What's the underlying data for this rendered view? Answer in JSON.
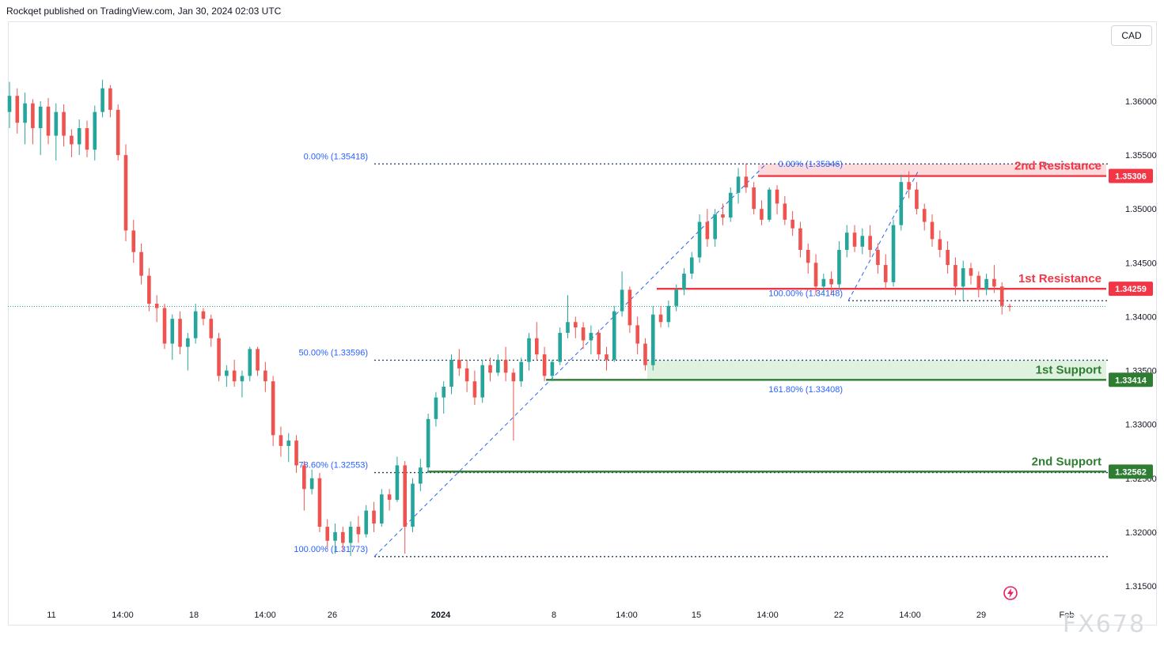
{
  "header": {
    "text": "Rockqet published on TradingView.com, Jan 30, 2024 02:03 UTC"
  },
  "currency_label": "CAD",
  "watermark": "FX678",
  "colors": {
    "bull": "#26a69a",
    "bear": "#ef5350",
    "resistance": "#f23645",
    "support": "#2e7d32",
    "fib": "#2962ff",
    "axis_text": "#131722"
  },
  "chart_data": {
    "type": "candlestick",
    "y_axis": {
      "position": "right",
      "range": [
        1.3135,
        1.3658
      ],
      "ticks": [
        "1.36000",
        "1.35500",
        "1.35000",
        "1.34500",
        "1.34000",
        "1.33500",
        "1.33000",
        "1.32500",
        "1.32000",
        "1.31500"
      ],
      "tick_values": [
        1.36,
        1.355,
        1.35,
        1.345,
        1.34,
        1.335,
        1.33,
        1.325,
        1.32,
        1.315
      ]
    },
    "x_axis": {
      "ticks": [
        "11",
        "14:00",
        "18",
        "14:00",
        "26",
        "2024",
        "8",
        "14:00",
        "15",
        "14:00",
        "22",
        "14:00",
        "29",
        "Feb"
      ]
    },
    "price_badges": [
      {
        "label": "1.35306",
        "value": 1.35306,
        "color": "#f23645"
      },
      {
        "label": "1.34259",
        "value": 1.34259,
        "color": "#f23645"
      },
      {
        "label": "1.33414",
        "value": 1.33414,
        "color": "#2e7d32"
      },
      {
        "label": "1.32562",
        "value": 1.32562,
        "color": "#2e7d32"
      }
    ],
    "levels": [
      {
        "name": "2nd Resistance",
        "value": 1.35306,
        "kind": "resistance"
      },
      {
        "name": "1st Resistance",
        "value": 1.34259,
        "kind": "resistance"
      },
      {
        "name": "1st Support",
        "value": 1.33414,
        "kind": "support"
      },
      {
        "name": "2nd Support",
        "value": 1.32562,
        "kind": "support"
      }
    ],
    "zones": [
      {
        "kind": "resistance",
        "from": 1.35306,
        "to": 1.35418
      },
      {
        "kind": "support",
        "from": 1.33414,
        "to": 1.33596
      }
    ],
    "current_price": 1.34095,
    "fib_labels": [
      {
        "text": "0.00% (1.35418)",
        "value": 1.35418
      },
      {
        "text": "50.00% (1.33596)",
        "value": 1.33596
      },
      {
        "text": "78.60% (1.32553)",
        "value": 1.32553
      },
      {
        "text": "100.00% (1.31773)",
        "value": 1.31773
      },
      {
        "text": "0.00% (1.35346)",
        "value": 1.35346
      },
      {
        "text": "100.00% (1.34148)",
        "value": 1.34148
      },
      {
        "text": "161.80% (1.33408)",
        "value": 1.33408
      }
    ],
    "candles": [
      [
        1.359,
        1.3618,
        1.3575,
        1.3605
      ],
      [
        1.3605,
        1.3612,
        1.357,
        1.358
      ],
      [
        1.358,
        1.3608,
        1.356,
        1.3598
      ],
      [
        1.3598,
        1.3602,
        1.356,
        1.3575
      ],
      [
        1.3575,
        1.36,
        1.355,
        1.3595
      ],
      [
        1.3595,
        1.3603,
        1.356,
        1.3568
      ],
      [
        1.3568,
        1.3598,
        1.3545,
        1.359
      ],
      [
        1.359,
        1.3597,
        1.3558,
        1.3568
      ],
      [
        1.3568,
        1.3574,
        1.3548,
        1.356
      ],
      [
        1.356,
        1.3583,
        1.355,
        1.3575
      ],
      [
        1.3575,
        1.3582,
        1.3548,
        1.3555
      ],
      [
        1.3555,
        1.3596,
        1.3545,
        1.359
      ],
      [
        1.359,
        1.362,
        1.3585,
        1.3612
      ],
      [
        1.3612,
        1.3615,
        1.3585,
        1.3592
      ],
      [
        1.3592,
        1.3597,
        1.3545,
        1.355
      ],
      [
        1.355,
        1.356,
        1.347,
        1.348
      ],
      [
        1.348,
        1.349,
        1.345,
        1.346
      ],
      [
        1.346,
        1.3468,
        1.343,
        1.3438
      ],
      [
        1.3438,
        1.3445,
        1.3405,
        1.3412
      ],
      [
        1.3412,
        1.342,
        1.3395,
        1.3408
      ],
      [
        1.3408,
        1.3412,
        1.337,
        1.3375
      ],
      [
        1.3375,
        1.3402,
        1.336,
        1.3398
      ],
      [
        1.3398,
        1.3405,
        1.3365,
        1.3372
      ],
      [
        1.3372,
        1.3385,
        1.335,
        1.338
      ],
      [
        1.338,
        1.3412,
        1.3375,
        1.3405
      ],
      [
        1.3405,
        1.3408,
        1.3392,
        1.3398
      ],
      [
        1.3398,
        1.3402,
        1.3372,
        1.338
      ],
      [
        1.338,
        1.3385,
        1.334,
        1.3345
      ],
      [
        1.3345,
        1.3355,
        1.3335,
        1.335
      ],
      [
        1.335,
        1.336,
        1.3335,
        1.334
      ],
      [
        1.334,
        1.335,
        1.3325,
        1.3345
      ],
      [
        1.3345,
        1.3372,
        1.334,
        1.337
      ],
      [
        1.337,
        1.3372,
        1.3345,
        1.335
      ],
      [
        1.335,
        1.3358,
        1.333,
        1.334
      ],
      [
        1.334,
        1.3345,
        1.328,
        1.329
      ],
      [
        1.329,
        1.3298,
        1.327,
        1.328
      ],
      [
        1.328,
        1.3292,
        1.3265,
        1.3285
      ],
      [
        1.3285,
        1.329,
        1.3255,
        1.3262
      ],
      [
        1.3262,
        1.3266,
        1.322,
        1.324
      ],
      [
        1.324,
        1.3258,
        1.3235,
        1.325
      ],
      [
        1.325,
        1.3255,
        1.32,
        1.3205
      ],
      [
        1.3205,
        1.3212,
        1.3185,
        1.3192
      ],
      [
        1.3192,
        1.3208,
        1.318,
        1.32
      ],
      [
        1.32,
        1.3205,
        1.3182,
        1.319
      ],
      [
        1.319,
        1.321,
        1.3178,
        1.3205
      ],
      [
        1.3205,
        1.3215,
        1.319,
        1.3198
      ],
      [
        1.3198,
        1.3225,
        1.3195,
        1.322
      ],
      [
        1.322,
        1.3228,
        1.32,
        1.3208
      ],
      [
        1.3208,
        1.324,
        1.3205,
        1.3235
      ],
      [
        1.3235,
        1.324,
        1.322,
        1.323
      ],
      [
        1.323,
        1.327,
        1.3228,
        1.3262
      ],
      [
        1.3262,
        1.3266,
        1.318,
        1.3205
      ],
      [
        1.3205,
        1.325,
        1.32,
        1.3245
      ],
      [
        1.3245,
        1.3268,
        1.3238,
        1.326
      ],
      [
        1.326,
        1.331,
        1.3255,
        1.3305
      ],
      [
        1.3305,
        1.333,
        1.3298,
        1.3325
      ],
      [
        1.3325,
        1.334,
        1.331,
        1.3335
      ],
      [
        1.3335,
        1.3365,
        1.3328,
        1.336
      ],
      [
        1.336,
        1.337,
        1.3345,
        1.3352
      ],
      [
        1.3352,
        1.336,
        1.333,
        1.334
      ],
      [
        1.334,
        1.335,
        1.3318,
        1.3325
      ],
      [
        1.3325,
        1.336,
        1.332,
        1.3355
      ],
      [
        1.3355,
        1.3362,
        1.334,
        1.3348
      ],
      [
        1.3348,
        1.3365,
        1.3345,
        1.336
      ],
      [
        1.336,
        1.3372,
        1.334,
        1.3348
      ],
      [
        1.3348,
        1.3352,
        1.3285,
        1.334
      ],
      [
        1.334,
        1.3362,
        1.3335,
        1.3358
      ],
      [
        1.3358,
        1.3385,
        1.335,
        1.338
      ],
      [
        1.338,
        1.3395,
        1.336,
        1.3365
      ],
      [
        1.3365,
        1.3372,
        1.334,
        1.3345
      ],
      [
        1.3345,
        1.336,
        1.334,
        1.3358
      ],
      [
        1.3358,
        1.339,
        1.3355,
        1.3385
      ],
      [
        1.3385,
        1.342,
        1.338,
        1.3395
      ],
      [
        1.3395,
        1.34,
        1.338,
        1.339
      ],
      [
        1.339,
        1.3395,
        1.337,
        1.3378
      ],
      [
        1.3378,
        1.3392,
        1.3365,
        1.3385
      ],
      [
        1.3385,
        1.3388,
        1.336,
        1.3365
      ],
      [
        1.3365,
        1.3372,
        1.335,
        1.336
      ],
      [
        1.336,
        1.341,
        1.3358,
        1.3405
      ],
      [
        1.3405,
        1.3442,
        1.34,
        1.3425
      ],
      [
        1.3425,
        1.3428,
        1.3385,
        1.3392
      ],
      [
        1.3392,
        1.34,
        1.3365,
        1.3375
      ],
      [
        1.3375,
        1.338,
        1.335,
        1.3355
      ],
      [
        1.3355,
        1.341,
        1.335,
        1.3402
      ],
      [
        1.3402,
        1.341,
        1.339,
        1.3395
      ],
      [
        1.3395,
        1.3415,
        1.339,
        1.341
      ],
      [
        1.341,
        1.343,
        1.3405,
        1.3425
      ],
      [
        1.3425,
        1.3445,
        1.342,
        1.344
      ],
      [
        1.344,
        1.346,
        1.3435,
        1.3455
      ],
      [
        1.3455,
        1.3495,
        1.345,
        1.3488
      ],
      [
        1.3488,
        1.35,
        1.3465,
        1.3472
      ],
      [
        1.3472,
        1.35,
        1.3465,
        1.3495
      ],
      [
        1.3495,
        1.3505,
        1.3485,
        1.3492
      ],
      [
        1.3492,
        1.352,
        1.3488,
        1.3515
      ],
      [
        1.3515,
        1.3538,
        1.3505,
        1.353
      ],
      [
        1.353,
        1.3542,
        1.3515,
        1.352
      ],
      [
        1.352,
        1.3525,
        1.3495,
        1.35
      ],
      [
        1.35,
        1.3508,
        1.3485,
        1.349
      ],
      [
        1.349,
        1.352,
        1.3488,
        1.3518
      ],
      [
        1.3518,
        1.3522,
        1.3495,
        1.3505
      ],
      [
        1.3505,
        1.3512,
        1.3485,
        1.349
      ],
      [
        1.349,
        1.3498,
        1.3475,
        1.3482
      ],
      [
        1.3482,
        1.3488,
        1.3455,
        1.3462
      ],
      [
        1.3462,
        1.3468,
        1.344,
        1.345
      ],
      [
        1.345,
        1.3458,
        1.342,
        1.3428
      ],
      [
        1.3428,
        1.344,
        1.342,
        1.3435
      ],
      [
        1.3435,
        1.3442,
        1.342,
        1.343
      ],
      [
        1.343,
        1.347,
        1.3425,
        1.3462
      ],
      [
        1.3462,
        1.3485,
        1.3455,
        1.3478
      ],
      [
        1.3478,
        1.3485,
        1.346,
        1.3465
      ],
      [
        1.3465,
        1.3482,
        1.3458,
        1.3475
      ],
      [
        1.3475,
        1.3485,
        1.3455,
        1.3462
      ],
      [
        1.3462,
        1.3468,
        1.344,
        1.3448
      ],
      [
        1.3448,
        1.3458,
        1.3425,
        1.3432
      ],
      [
        1.3432,
        1.349,
        1.3428,
        1.3485
      ],
      [
        1.3485,
        1.3532,
        1.348,
        1.3525
      ],
      [
        1.3525,
        1.3535,
        1.351,
        1.3518
      ],
      [
        1.3518,
        1.3525,
        1.3495,
        1.35
      ],
      [
        1.35,
        1.3505,
        1.348,
        1.3488
      ],
      [
        1.3488,
        1.3495,
        1.3465,
        1.3472
      ],
      [
        1.3472,
        1.348,
        1.3455,
        1.3462
      ],
      [
        1.3462,
        1.347,
        1.344,
        1.3448
      ],
      [
        1.3448,
        1.3455,
        1.342,
        1.3428
      ],
      [
        1.3428,
        1.3452,
        1.3415,
        1.3445
      ],
      [
        1.3445,
        1.345,
        1.343,
        1.3438
      ],
      [
        1.3438,
        1.3442,
        1.3418,
        1.3425
      ],
      [
        1.3425,
        1.344,
        1.342,
        1.3435
      ],
      [
        1.3435,
        1.3448,
        1.3422,
        1.3428
      ],
      [
        1.3428,
        1.3432,
        1.3402,
        1.341
      ],
      [
        1.341,
        1.3412,
        1.3405,
        1.3409
      ]
    ]
  }
}
